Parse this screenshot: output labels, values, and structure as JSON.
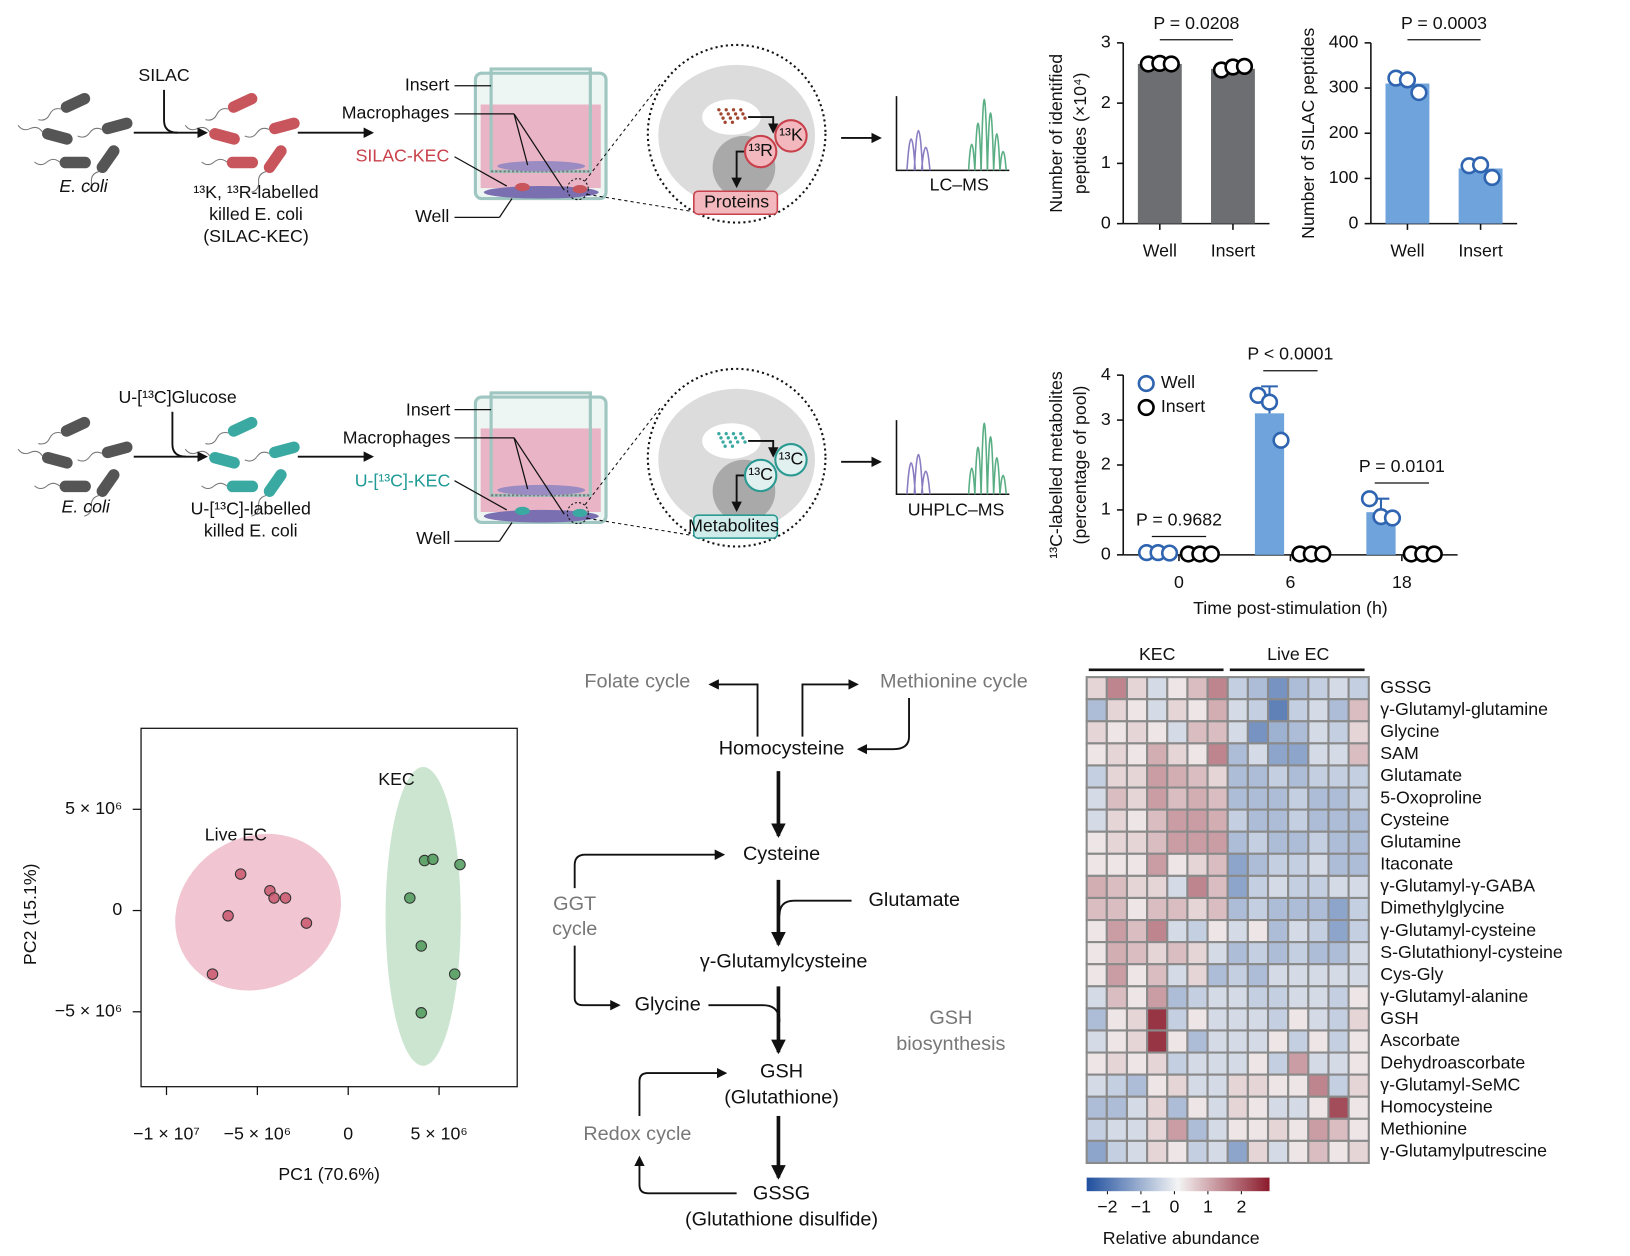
{
  "schematic_silac": {
    "reagent": "SILAC",
    "source": "E. coli",
    "product": [
      "¹³K, ¹³R-labelled",
      "killed E. coli",
      "(SILAC-KEC)"
    ],
    "labels": {
      "insert": "Insert",
      "macrophages": "Macrophages",
      "kec": "SILAC-KEC",
      "well": "Well"
    },
    "cell": [
      "¹³R",
      "¹³K",
      "Proteins"
    ],
    "readout": "LC–MS"
  },
  "schematic_13c": {
    "reagent": "U-[¹³C]Glucose",
    "source": "E. coli",
    "product": [
      "U-[¹³C]-labelled",
      "killed E. coli"
    ],
    "labels": {
      "insert": "Insert",
      "macrophages": "Macrophages",
      "kec": "U-[¹³C]-KEC",
      "well": "Well"
    },
    "cell": [
      "¹³C",
      "¹³C",
      "Metabolites"
    ],
    "readout": "UHPLC–MS"
  },
  "pathway": {
    "folate": "Folate cycle",
    "methionine": "Methionine cycle",
    "homocysteine": "Homocysteine",
    "cysteine": "Cysteine",
    "glutamate": "Glutamate",
    "ggt": [
      "GGT",
      "cycle"
    ],
    "gcys": "γ-Glutamylcysteine",
    "glycine": "Glycine",
    "biosynthesis": [
      "GSH",
      "biosynthesis"
    ],
    "gsh": [
      "GSH",
      "(Glutathione)"
    ],
    "redox": "Redox cycle",
    "gssg": [
      "GSSG",
      "(Glutathione disulfide)"
    ]
  },
  "chart_data": [
    {
      "type": "bar",
      "ylabel": [
        "Number of identified",
        "peptides (×10⁴)"
      ],
      "categories": [
        "Well",
        "Insert"
      ],
      "values": [
        2.65,
        2.57
      ],
      "points": [
        [
          2.65,
          2.66,
          2.65
        ],
        [
          2.55,
          2.6,
          2.61
        ]
      ],
      "color": "#6d6e71",
      "point_color": "#000000",
      "ylim": [
        0,
        3
      ],
      "yticks": [
        0,
        1,
        2,
        3
      ],
      "annotation": "P = 0.0208"
    },
    {
      "type": "bar",
      "ylabel": [
        "Number of SILAC peptides"
      ],
      "categories": [
        "Well",
        "Insert"
      ],
      "values": [
        310,
        122
      ],
      "points": [
        [
          322,
          318,
          290
        ],
        [
          128,
          130,
          102
        ]
      ],
      "color": "#6fa3dc",
      "point_color": "#2f64b0",
      "ylim": [
        0,
        400
      ],
      "yticks": [
        0,
        100,
        200,
        300,
        400
      ],
      "annotation": "P = 0.0003"
    },
    {
      "type": "bar",
      "ylabel": [
        "¹³C-labelled metabolites",
        "(percentage of pool)"
      ],
      "xlabel": "Time post-stimulation (h)",
      "categories": [
        "0",
        "6",
        "18"
      ],
      "series": [
        {
          "name": "Well",
          "color": "#6fa3dc",
          "point_color": "#2f64b0",
          "values": [
            0.04,
            3.15,
            0.95
          ],
          "errors": [
            0.02,
            0.6,
            0.3
          ],
          "points": [
            [
              0.05,
              0.05,
              0.04
            ],
            [
              3.55,
              3.4,
              2.55
            ],
            [
              1.25,
              0.85,
              0.82
            ]
          ]
        },
        {
          "name": "Insert",
          "color": "#9e9e9e",
          "point_color": "#000000",
          "values": [
            0.02,
            0.02,
            0.02
          ],
          "points": [
            [
              0.02,
              0.02,
              0.02
            ],
            [
              0.02,
              0.02,
              0.02
            ],
            [
              0.02,
              0.02,
              0.02
            ]
          ]
        }
      ],
      "annotations": [
        "P = 0.9682",
        "P < 0.0001",
        "P = 0.0101"
      ],
      "ylim": [
        0,
        4
      ],
      "yticks": [
        0,
        1,
        2,
        3,
        4
      ],
      "legend": "upper left"
    },
    {
      "type": "scatter",
      "xlabel": "PC1 (70.6%)",
      "ylabel": "PC2 (15.1%)",
      "xlim": [
        -11400000,
        9300000
      ],
      "ylim": [
        -8700000,
        9000000
      ],
      "xticks": [
        {
          "value": -10000000,
          "label": "−1 × 10⁷"
        },
        {
          "value": -5000000,
          "label": "−5 × 10⁶"
        },
        0,
        {
          "value": 5000000,
          "label": "5 × 10⁶"
        }
      ],
      "yticks": [
        {
          "value": -5000000,
          "label": "−5 × 10⁶"
        },
        0,
        {
          "value": 5000000,
          "label": "5 × 10⁶"
        }
      ],
      "series": [
        {
          "name": "Live EC",
          "color": "#c9566f",
          "x": [
            -5920000,
            -4310000,
            -4080000,
            -3450000,
            -2300000,
            -6610000,
            -7470000
          ],
          "y": [
            1800000,
            980000,
            620000,
            620000,
            -620000,
            -260000,
            -3140000
          ]
        },
        {
          "name": "KEC",
          "color": "#4f9a5a",
          "x": [
            4200000,
            4660000,
            6150000,
            3390000,
            4020000,
            5860000,
            4020000
          ],
          "y": [
            2470000,
            2530000,
            2270000,
            620000,
            -1750000,
            -3140000,
            -5050000
          ]
        }
      ]
    },
    {
      "type": "heatmap",
      "rows": [
        "GSSG",
        "γ-Glutamyl-glutamine",
        "Glycine",
        "SAM",
        "Glutamate",
        "5-Oxoproline",
        "Cysteine",
        "Glutamine",
        "Itaconate",
        "γ-Glutamyl-γ-GABA",
        "Dimethylglycine",
        "γ-Glutamyl-cysteine",
        "S-Glutathionyl-cysteine",
        "Cys-Gly",
        "γ-Glutamyl-alanine",
        "GSH",
        "Ascorbate",
        "Dehydroascorbate",
        "γ-Glutamyl-SeMC",
        "Homocysteine",
        "Methionine",
        "γ-Glutamylputrescine"
      ],
      "series": [
        {
          "name": "KEC",
          "values": [
            [
              0.5,
              1.5,
              0.5,
              -0.3,
              0.3,
              0.8,
              1.5
            ],
            [
              -0.8,
              0.5,
              0.3,
              -0.3,
              0.5,
              0.3,
              1.0
            ],
            [
              0.5,
              0.3,
              0.5,
              0.3,
              -0.3,
              0.8,
              0.8
            ],
            [
              0.3,
              0.5,
              0.3,
              1.0,
              0.5,
              0.3,
              1.5
            ],
            [
              -0.5,
              0.5,
              0.5,
              1.2,
              1.0,
              0.8,
              0.5
            ],
            [
              -0.3,
              0.8,
              0.5,
              1.2,
              0.8,
              1.0,
              0.8
            ],
            [
              -0.3,
              0.5,
              0.3,
              0.8,
              1.2,
              1.2,
              1.0
            ],
            [
              0.3,
              0.5,
              0.5,
              0.8,
              1.2,
              1.2,
              1.2
            ],
            [
              0.3,
              0.3,
              0.3,
              1.2,
              0.3,
              0.5,
              0.8
            ],
            [
              1.0,
              0.8,
              0.5,
              0.5,
              -0.3,
              1.5,
              0.8
            ],
            [
              0.8,
              0.8,
              0.3,
              0.8,
              0.8,
              0.5,
              0.8
            ],
            [
              0.3,
              1.2,
              0.8,
              1.5,
              -0.3,
              -0.5,
              0.3
            ],
            [
              0.3,
              1.0,
              0.8,
              0.5,
              0.8,
              0.5,
              -0.3
            ],
            [
              0.3,
              1.2,
              0.3,
              0.8,
              -0.3,
              0.5,
              -0.8
            ],
            [
              -0.3,
              0.8,
              0.3,
              1.2,
              -0.8,
              -0.5,
              -0.3
            ],
            [
              -0.8,
              0.3,
              0.5,
              2.5,
              -0.5,
              0.3,
              -0.3
            ],
            [
              -0.3,
              0.3,
              0.5,
              2.5,
              0.3,
              -0.8,
              -0.3
            ],
            [
              0.3,
              0.5,
              0.3,
              0.5,
              -0.5,
              -0.3,
              -0.3
            ],
            [
              -0.3,
              -0.5,
              -0.8,
              0.3,
              0.5,
              -0.3,
              -0.3
            ],
            [
              -0.8,
              -0.8,
              -0.3,
              0.5,
              -0.8,
              0.3,
              -0.3
            ],
            [
              -0.5,
              -0.3,
              -0.3,
              0.5,
              1.2,
              -0.8,
              -0.3
            ],
            [
              -1.2,
              -0.5,
              -0.3,
              0.5,
              0.3,
              -0.5,
              -0.3
            ]
          ]
        },
        {
          "name": "Live EC",
          "values": [
            [
              -0.5,
              -0.8,
              -1.5,
              -0.8,
              -0.5,
              -0.3,
              -0.5
            ],
            [
              -0.3,
              -0.5,
              -1.8,
              -0.5,
              -0.3,
              -0.8,
              0.8
            ],
            [
              -0.3,
              -1.5,
              -1.0,
              -0.8,
              -0.3,
              -0.5,
              0.5
            ],
            [
              -0.8,
              -0.3,
              -1.2,
              -1.2,
              -0.3,
              -0.3,
              0.8
            ],
            [
              -0.8,
              -0.8,
              -0.5,
              -0.8,
              -0.5,
              -0.5,
              -0.5
            ],
            [
              -0.8,
              -0.8,
              -0.8,
              -0.5,
              -0.8,
              -0.8,
              -0.5
            ],
            [
              -0.5,
              -0.8,
              -0.8,
              -0.5,
              -0.8,
              -0.8,
              -0.8
            ],
            [
              -0.8,
              -0.5,
              -0.8,
              -0.8,
              -0.5,
              -0.8,
              -0.8
            ],
            [
              -1.2,
              -0.8,
              -0.5,
              -0.5,
              -0.3,
              -0.8,
              -0.8
            ],
            [
              -1.2,
              -0.5,
              -0.3,
              -0.5,
              -0.5,
              -0.3,
              -0.3
            ],
            [
              -0.8,
              -0.5,
              -0.8,
              -0.8,
              -0.8,
              -1.2,
              -0.5
            ],
            [
              -0.3,
              0.3,
              -0.8,
              -0.3,
              -0.5,
              -1.2,
              -0.5
            ],
            [
              -0.8,
              -0.5,
              -0.8,
              -0.5,
              -0.8,
              -0.8,
              -0.3
            ],
            [
              -0.5,
              -0.8,
              -0.3,
              -0.3,
              -0.3,
              -0.3,
              -0.3
            ],
            [
              -0.3,
              -0.5,
              -0.5,
              -0.3,
              -0.3,
              -0.5,
              0.3
            ],
            [
              -0.3,
              -0.3,
              -0.5,
              0.3,
              -0.3,
              -0.5,
              0.5
            ],
            [
              -0.3,
              -0.3,
              0.3,
              -0.5,
              0.3,
              -0.5,
              0.3
            ],
            [
              -0.3,
              0.3,
              -0.5,
              1.2,
              -0.3,
              -0.3,
              0.3
            ],
            [
              0.5,
              0.5,
              0.3,
              0.3,
              1.5,
              -0.5,
              0.5
            ],
            [
              0.5,
              0.3,
              -0.3,
              -0.3,
              0.3,
              2.2,
              0.3
            ],
            [
              0.3,
              0.3,
              0.5,
              0.3,
              1.2,
              0.8,
              0.3
            ],
            [
              -1.2,
              0.5,
              -0.3,
              0.3,
              0.8,
              0.3,
              0.5
            ]
          ]
        }
      ],
      "colorscale": [
        "#1f4f9e",
        "#f4f4f4",
        "#8b1a2b"
      ],
      "zlim": [
        -2.62,
        2.84
      ],
      "zticks": [
        {
          "value": -2,
          "label": "−2"
        },
        {
          "value": -1,
          "label": "−1"
        },
        0,
        1,
        2
      ],
      "colorbar_label": "Relative abundance"
    }
  ]
}
